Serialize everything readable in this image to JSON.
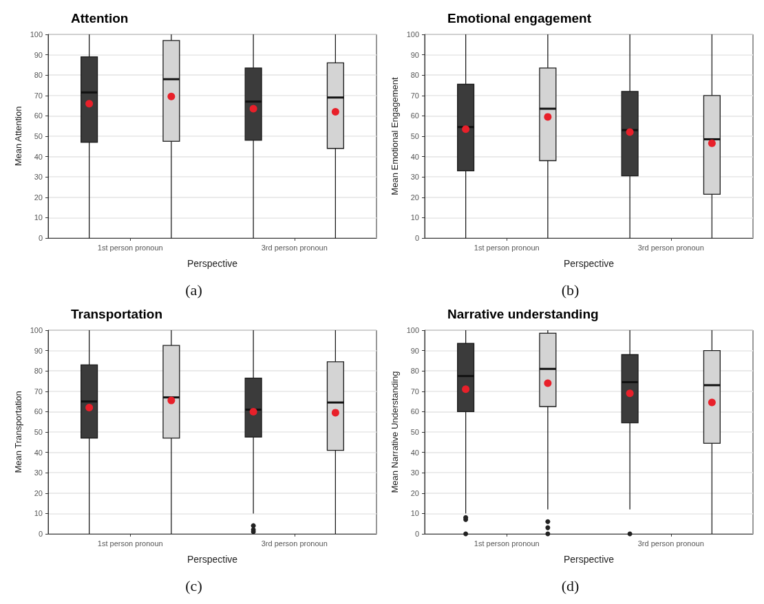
{
  "chart_data": [
    {
      "type": "box",
      "title": "Attention",
      "xlabel": "Perspective",
      "ylabel": "Mean Attention",
      "categories": [
        "1st person pronoun",
        "3rd person pronoun"
      ],
      "ylim": [
        0,
        100
      ],
      "yticks": [
        0,
        10,
        20,
        30,
        40,
        50,
        60,
        70,
        80,
        90,
        100
      ],
      "grid": "y",
      "annotations": [
        "(a)"
      ],
      "series": [
        {
          "color": "#3b3b3b",
          "boxes": [
            {
              "low": 0,
              "q1": 47,
              "median": 71.5,
              "q3": 89,
              "high": 100,
              "mean": 66
            },
            {
              "low": 0,
              "q1": 48,
              "median": 67,
              "q3": 83.5,
              "high": 100,
              "mean": 63.5
            }
          ]
        },
        {
          "color": "#d4d4d4",
          "boxes": [
            {
              "low": 0,
              "q1": 47.5,
              "median": 78,
              "q3": 97,
              "high": 100,
              "mean": 69.5
            },
            {
              "low": 0,
              "q1": 44,
              "median": 69,
              "q3": 86,
              "high": 100,
              "mean": 62
            }
          ]
        }
      ]
    },
    {
      "type": "box",
      "title": "Emotional engagement",
      "xlabel": "Perspective",
      "ylabel": "Mean Emotional Engagement",
      "categories": [
        "1st person pronoun",
        "3rd person pronoun"
      ],
      "ylim": [
        0,
        100
      ],
      "yticks": [
        0,
        10,
        20,
        30,
        40,
        50,
        60,
        70,
        80,
        90,
        100
      ],
      "grid": "y",
      "annotations": [
        "(b)"
      ],
      "series": [
        {
          "color": "#3b3b3b",
          "boxes": [
            {
              "low": 0,
              "q1": 33,
              "median": 54.5,
              "q3": 75.5,
              "high": 100,
              "mean": 53.5
            },
            {
              "low": 0,
              "q1": 30.5,
              "median": 53,
              "q3": 72,
              "high": 100,
              "mean": 52
            }
          ]
        },
        {
          "color": "#d4d4d4",
          "boxes": [
            {
              "low": 0,
              "q1": 38,
              "median": 63.5,
              "q3": 83.5,
              "high": 100,
              "mean": 59.5
            },
            {
              "low": 0,
              "q1": 21.5,
              "median": 48.5,
              "q3": 70,
              "high": 100,
              "mean": 46.5
            }
          ]
        }
      ]
    },
    {
      "type": "box",
      "title": "Transportation",
      "xlabel": "Perspective",
      "ylabel": "Mean Transportation",
      "categories": [
        "1st person pronoun",
        "3rd person pronoun"
      ],
      "ylim": [
        0,
        100
      ],
      "yticks": [
        0,
        10,
        20,
        30,
        40,
        50,
        60,
        70,
        80,
        90,
        100
      ],
      "grid": "y",
      "annotations": [
        "(c)"
      ],
      "series": [
        {
          "color": "#3b3b3b",
          "boxes": [
            {
              "low": 0,
              "q1": 47,
              "median": 65,
              "q3": 83,
              "high": 100,
              "mean": 62
            },
            {
              "low": 10,
              "q1": 47.5,
              "median": 61,
              "q3": 76.5,
              "high": 100,
              "mean": 60,
              "outliers": [
                1,
                2,
                4
              ]
            }
          ]
        },
        {
          "color": "#d4d4d4",
          "boxes": [
            {
              "low": 0,
              "q1": 47,
              "median": 67,
              "q3": 92.5,
              "high": 100,
              "mean": 65.5
            },
            {
              "low": 0,
              "q1": 41,
              "median": 64.5,
              "q3": 84.5,
              "high": 100,
              "mean": 59.5
            }
          ]
        }
      ]
    },
    {
      "type": "box",
      "title": "Narrative understanding",
      "xlabel": "Perspective",
      "ylabel": "Mean Narrative Understanding",
      "categories": [
        "1st person pronoun",
        "3rd person pronoun"
      ],
      "ylim": [
        0,
        100
      ],
      "yticks": [
        0,
        10,
        20,
        30,
        40,
        50,
        60,
        70,
        80,
        90,
        100
      ],
      "grid": "y",
      "annotations": [
        "(d)"
      ],
      "series": [
        {
          "color": "#3b3b3b",
          "boxes": [
            {
              "low": 10,
              "q1": 60,
              "median": 77.5,
              "q3": 93.5,
              "high": 100,
              "mean": 71,
              "outliers": [
                0,
                7,
                8
              ]
            },
            {
              "low": 12,
              "q1": 54.5,
              "median": 74.5,
              "q3": 88,
              "high": 100,
              "mean": 69,
              "outliers": [
                0
              ]
            }
          ]
        },
        {
          "color": "#d4d4d4",
          "boxes": [
            {
              "low": 12,
              "q1": 62.5,
              "median": 81,
              "q3": 98.5,
              "high": 100,
              "mean": 74,
              "outliers": [
                0,
                3,
                6
              ]
            },
            {
              "low": 0,
              "q1": 44.5,
              "median": 73,
              "q3": 90,
              "high": 100,
              "mean": 64.5
            }
          ]
        }
      ]
    }
  ]
}
